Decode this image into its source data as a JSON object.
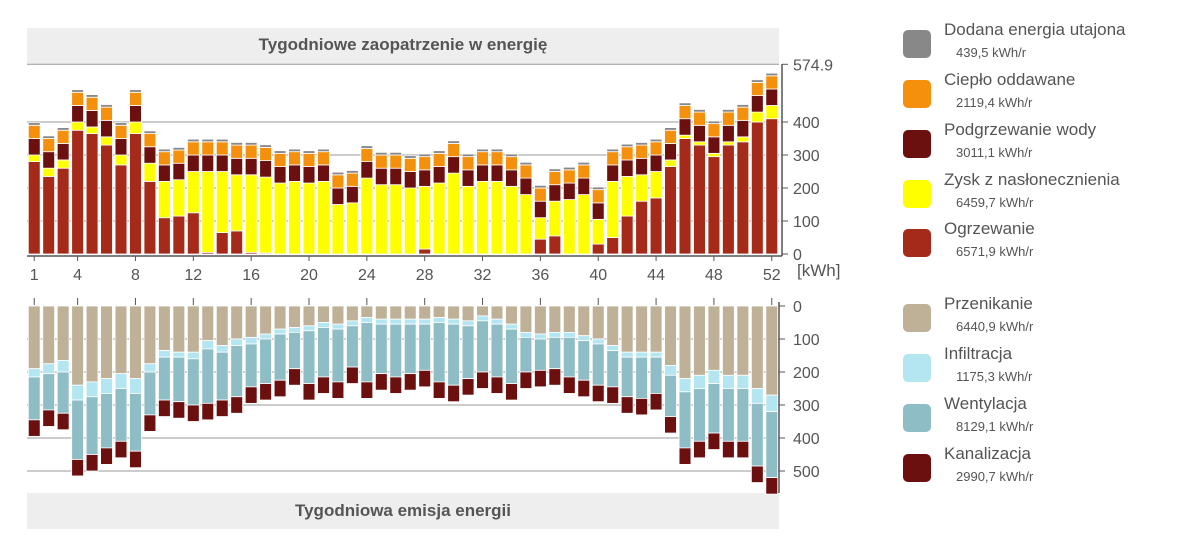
{
  "chart_data": [
    {
      "type": "bar",
      "stacked": true,
      "title": "Tygodniowe zaopatrzenie w energię",
      "unit": "[kWh]",
      "ylim": [
        0,
        574.9
      ],
      "y_max_label": "574.9",
      "y_ticks": [
        0,
        100,
        200,
        300,
        400
      ],
      "x_ticks": [
        1,
        4,
        8,
        12,
        16,
        20,
        24,
        28,
        32,
        36,
        40,
        44,
        48,
        52
      ],
      "grid": true,
      "categories": [
        1,
        2,
        3,
        4,
        5,
        6,
        7,
        8,
        9,
        10,
        11,
        12,
        13,
        14,
        15,
        16,
        17,
        18,
        19,
        20,
        21,
        22,
        23,
        24,
        25,
        26,
        27,
        28,
        29,
        30,
        31,
        32,
        33,
        34,
        35,
        36,
        37,
        38,
        39,
        40,
        41,
        42,
        43,
        44,
        45,
        46,
        47,
        48,
        49,
        50,
        51,
        52
      ],
      "series": [
        {
          "name": "Ogrzewanie",
          "color": "#a52a1a",
          "values": [
            280,
            235,
            260,
            375,
            365,
            330,
            270,
            365,
            220,
            110,
            115,
            125,
            5,
            65,
            70,
            5,
            3,
            0,
            0,
            0,
            0,
            0,
            0,
            0,
            0,
            0,
            0,
            15,
            0,
            0,
            0,
            0,
            0,
            0,
            0,
            45,
            55,
            0,
            0,
            30,
            50,
            115,
            160,
            170,
            265,
            350,
            330,
            295,
            330,
            340,
            400,
            410
          ]
        },
        {
          "name": "Zysk z nasłonecznienia",
          "color": "#ffff00",
          "values": [
            20,
            25,
            25,
            25,
            20,
            25,
            30,
            35,
            55,
            110,
            110,
            125,
            245,
            185,
            170,
            235,
            230,
            215,
            220,
            215,
            220,
            150,
            155,
            230,
            210,
            210,
            200,
            190,
            215,
            245,
            205,
            220,
            220,
            205,
            180,
            65,
            105,
            165,
            180,
            75,
            170,
            120,
            80,
            80,
            20,
            10,
            10,
            10,
            10,
            15,
            30,
            40
          ]
        },
        {
          "name": "Podgrzewanie wody",
          "color": "#6b0f0f",
          "values": [
            50,
            50,
            50,
            50,
            50,
            50,
            50,
            50,
            50,
            50,
            50,
            50,
            50,
            50,
            50,
            50,
            50,
            50,
            50,
            50,
            50,
            50,
            50,
            50,
            50,
            50,
            50,
            50,
            50,
            50,
            50,
            50,
            50,
            50,
            50,
            50,
            50,
            50,
            50,
            50,
            50,
            50,
            50,
            50,
            50,
            50,
            50,
            50,
            50,
            50,
            50,
            50
          ]
        },
        {
          "name": "Ciepło oddawane",
          "color": "#f5900c",
          "values": [
            40,
            40,
            40,
            40,
            40,
            40,
            40,
            40,
            40,
            40,
            40,
            40,
            40,
            40,
            40,
            40,
            40,
            40,
            40,
            40,
            40,
            40,
            40,
            40,
            40,
            40,
            40,
            40,
            40,
            40,
            40,
            40,
            40,
            40,
            40,
            40,
            40,
            40,
            40,
            40,
            40,
            40,
            40,
            40,
            40,
            40,
            40,
            40,
            40,
            40,
            40,
            40
          ]
        },
        {
          "name": "Dodana energia utajona",
          "color": "#888888",
          "values": [
            8,
            8,
            8,
            8,
            8,
            8,
            8,
            8,
            8,
            8,
            8,
            8,
            8,
            8,
            8,
            8,
            8,
            8,
            8,
            8,
            8,
            8,
            8,
            8,
            8,
            8,
            8,
            8,
            8,
            8,
            8,
            8,
            8,
            8,
            8,
            8,
            8,
            8,
            8,
            8,
            8,
            8,
            8,
            8,
            8,
            8,
            8,
            8,
            8,
            8,
            8,
            8
          ]
        }
      ]
    },
    {
      "type": "bar",
      "stacked": true,
      "title": "Tygodniowa emisja energii",
      "ylim": [
        0,
        574.9
      ],
      "y_ticks": [
        0,
        100,
        200,
        300,
        400,
        500
      ],
      "grid": true,
      "categories": [
        1,
        2,
        3,
        4,
        5,
        6,
        7,
        8,
        9,
        10,
        11,
        12,
        13,
        14,
        15,
        16,
        17,
        18,
        19,
        20,
        21,
        22,
        23,
        24,
        25,
        26,
        27,
        28,
        29,
        30,
        31,
        32,
        33,
        34,
        35,
        36,
        37,
        38,
        39,
        40,
        41,
        42,
        43,
        44,
        45,
        46,
        47,
        48,
        49,
        50,
        51,
        52
      ],
      "series": [
        {
          "name": "Przenikanie",
          "color": "#bfb098",
          "values": [
            190,
            175,
            165,
            240,
            230,
            220,
            205,
            220,
            175,
            135,
            140,
            140,
            105,
            120,
            100,
            95,
            85,
            70,
            65,
            60,
            50,
            55,
            45,
            35,
            40,
            40,
            40,
            40,
            35,
            40,
            45,
            30,
            40,
            55,
            80,
            85,
            80,
            80,
            90,
            100,
            120,
            140,
            140,
            140,
            180,
            220,
            210,
            195,
            210,
            210,
            250,
            270
          ]
        },
        {
          "name": "Infiltracja",
          "color": "#b3e6f0",
          "values": [
            25,
            30,
            35,
            45,
            45,
            45,
            45,
            45,
            25,
            20,
            15,
            20,
            25,
            20,
            20,
            20,
            15,
            15,
            15,
            15,
            15,
            15,
            15,
            15,
            15,
            15,
            15,
            15,
            15,
            15,
            15,
            15,
            15,
            15,
            15,
            15,
            15,
            15,
            15,
            15,
            15,
            15,
            15,
            15,
            30,
            40,
            40,
            40,
            40,
            40,
            45,
            50
          ]
        },
        {
          "name": "Wentylacja",
          "color": "#8fbdc6",
          "values": [
            130,
            110,
            125,
            180,
            175,
            165,
            160,
            175,
            130,
            130,
            135,
            140,
            165,
            145,
            155,
            130,
            135,
            140,
            110,
            160,
            150,
            160,
            125,
            180,
            150,
            160,
            150,
            140,
            180,
            185,
            160,
            155,
            160,
            165,
            105,
            95,
            95,
            120,
            120,
            125,
            110,
            120,
            125,
            110,
            125,
            170,
            160,
            150,
            160,
            160,
            190,
            200
          ]
        },
        {
          "name": "Kanalizacja",
          "color": "#6b0f0f",
          "values": [
            50,
            50,
            50,
            50,
            50,
            50,
            50,
            50,
            50,
            50,
            50,
            50,
            50,
            50,
            50,
            50,
            50,
            50,
            50,
            50,
            50,
            50,
            50,
            50,
            50,
            50,
            50,
            50,
            50,
            50,
            50,
            50,
            50,
            50,
            50,
            50,
            50,
            50,
            50,
            50,
            50,
            50,
            50,
            50,
            50,
            50,
            50,
            50,
            50,
            50,
            50,
            50
          ]
        }
      ]
    }
  ],
  "legend": [
    {
      "name": "Dodana energia utajona",
      "value": "439,5 kWh/r",
      "color": "#888888"
    },
    {
      "name": "Ciepło oddawane",
      "value": "2119,4 kWh/r",
      "color": "#f5900c"
    },
    {
      "name": "Podgrzewanie wody",
      "value": "3011,1 kWh/r",
      "color": "#6b0f0f"
    },
    {
      "name": "Zysk z nasłonecznienia",
      "value": "6459,7 kWh/r",
      "color": "#ffff00"
    },
    {
      "name": "Ogrzewanie",
      "value": "6571,9 kWh/r",
      "color": "#a52a1a"
    },
    {
      "name": "Przenikanie",
      "value": "6440,9 kWh/r",
      "color": "#bfb098"
    },
    {
      "name": "Infiltracja",
      "value": "1175,3 kWh/r",
      "color": "#b3e6f0"
    },
    {
      "name": "Wentylacja",
      "value": "8129,1 kWh/r",
      "color": "#8fbdc6"
    },
    {
      "name": "Kanalizacja",
      "value": "2990,7 kWh/r",
      "color": "#6b0f0f"
    }
  ]
}
